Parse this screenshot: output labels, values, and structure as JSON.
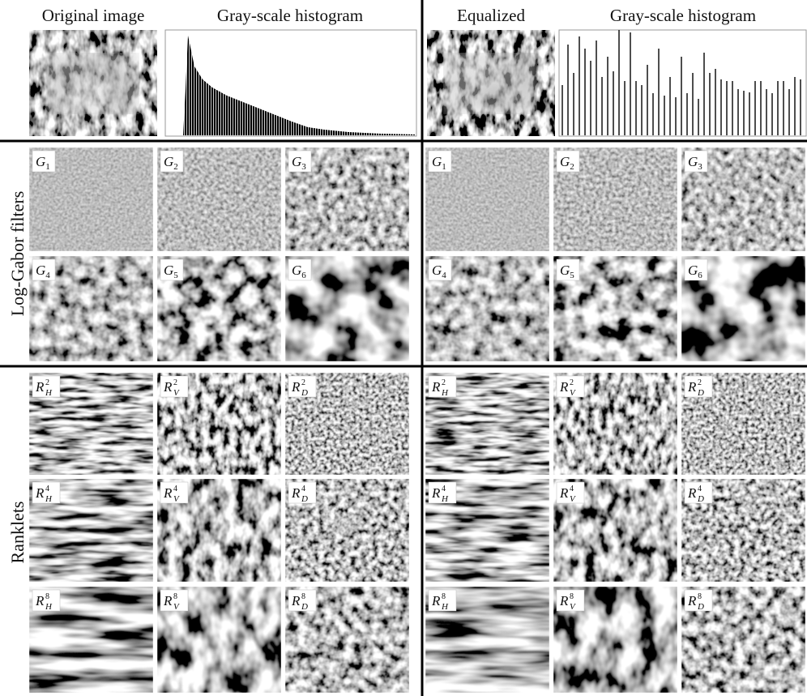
{
  "headers": [
    "Original image",
    "Gray-scale histogram",
    "Equalized",
    "Gray-scale histogram"
  ],
  "side_labels": [
    "Log-Gabor filters",
    "Ranklets"
  ],
  "panels": [
    {
      "gabor": [
        {
          "symbol": "G",
          "sub": "1"
        },
        {
          "symbol": "G",
          "sub": "2"
        },
        {
          "symbol": "G",
          "sub": "3"
        },
        {
          "symbol": "G",
          "sub": "4"
        },
        {
          "symbol": "G",
          "sub": "5"
        },
        {
          "symbol": "G",
          "sub": "6"
        }
      ],
      "ranklets": [
        {
          "symbol": "R",
          "sub": "H",
          "sup": "2"
        },
        {
          "symbol": "R",
          "sub": "V",
          "sup": "2"
        },
        {
          "symbol": "R",
          "sub": "D",
          "sup": "2"
        },
        {
          "symbol": "R",
          "sub": "H",
          "sup": "4"
        },
        {
          "symbol": "R",
          "sub": "V",
          "sup": "4"
        },
        {
          "symbol": "R",
          "sub": "D",
          "sup": "4"
        },
        {
          "symbol": "R",
          "sub": "H",
          "sup": "8"
        },
        {
          "symbol": "R",
          "sub": "V",
          "sup": "8"
        },
        {
          "symbol": "R",
          "sub": "D",
          "sup": "8"
        }
      ]
    },
    {
      "gabor": [
        {
          "symbol": "G",
          "sub": "1"
        },
        {
          "symbol": "G",
          "sub": "2"
        },
        {
          "symbol": "G",
          "sub": "3"
        },
        {
          "symbol": "G",
          "sub": "4"
        },
        {
          "symbol": "G",
          "sub": "5"
        },
        {
          "symbol": "G",
          "sub": "6"
        }
      ],
      "ranklets": [
        {
          "symbol": "R",
          "sub": "H",
          "sup": "2"
        },
        {
          "symbol": "R",
          "sub": "V",
          "sup": "2"
        },
        {
          "symbol": "R",
          "sub": "D",
          "sup": "2"
        },
        {
          "symbol": "R",
          "sub": "H",
          "sup": "4"
        },
        {
          "symbol": "R",
          "sub": "V",
          "sup": "4"
        },
        {
          "symbol": "R",
          "sub": "D",
          "sup": "4"
        },
        {
          "symbol": "R",
          "sub": "H",
          "sup": "8"
        },
        {
          "symbol": "R",
          "sub": "V",
          "sup": "8"
        },
        {
          "symbol": "R",
          "sub": "D",
          "sup": "8"
        }
      ]
    }
  ]
}
